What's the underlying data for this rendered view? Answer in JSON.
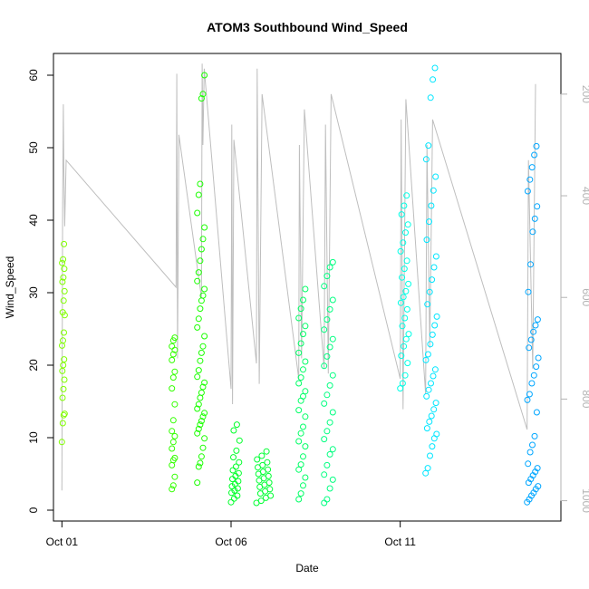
{
  "chart_data": {
    "type": "scatter",
    "title": "ATOM3 Southbound Wind_Speed",
    "xlabel": "Date",
    "ylabel": "Wind_Speed",
    "xlim": [
      "2009-09-30T18:00",
      "2009-10-15T18:00"
    ],
    "x_ticks": [
      {
        "date": "2009-10-01",
        "label": "Oct 01"
      },
      {
        "date": "2009-10-06",
        "label": "Oct 06"
      },
      {
        "date": "2009-10-11",
        "label": "Oct 11"
      }
    ],
    "ylim": [
      -1.5,
      63
    ],
    "y_ticks": [
      0,
      10,
      20,
      30,
      40,
      50,
      60
    ],
    "y2": {
      "description": "pressure profile trace (gray), reversed axis",
      "ylim": [
        1040,
        120
      ],
      "ticks": [
        200,
        400,
        600,
        800,
        1000
      ],
      "color": "#bebebe"
    },
    "grid": false,
    "legend": "none",
    "series": [
      {
        "start": "2009-10-01T00:00",
        "end": "2009-10-01T02:00",
        "color": "#80ff00",
        "values": [
          9.4,
          12.0,
          13.1,
          13.3,
          15.5,
          16.7,
          18.0,
          19.2,
          20.0,
          20.8,
          22.7,
          23.4,
          24.5,
          26.9,
          27.3,
          28.9,
          30.2,
          31.5,
          32.1,
          33.3,
          34.1,
          34.6,
          36.7
        ]
      },
      {
        "start": "2009-10-04T06:00",
        "end": "2009-10-04T09:00",
        "color": "#33ff00",
        "values": [
          2.9,
          3.4,
          4.6,
          6.2,
          6.9,
          7.2,
          8.5,
          9.4,
          10.2,
          10.9,
          12.4,
          14.6,
          16.8,
          18.3,
          19.1,
          20.7,
          21.5,
          22.1,
          22.6,
          23.4,
          23.8
        ]
      },
      {
        "start": "2009-10-05T00:00",
        "end": "2009-10-05T06:00",
        "color": "#1aff00",
        "values": [
          3.8,
          6.0,
          6.5,
          7.4,
          8.6,
          9.9,
          10.6,
          11.2,
          11.8,
          12.3,
          12.9,
          13.4,
          14.0,
          14.6,
          15.5,
          16.2,
          17.0,
          17.6,
          18.4,
          19.3,
          20.6,
          21.7,
          22.6,
          24.0,
          25.2,
          26.4,
          27.8,
          28.9,
          29.6,
          30.5,
          31.6,
          32.8,
          34.4,
          36.0,
          37.4,
          39.0,
          41.0,
          43.5,
          45.0,
          56.8,
          57.4,
          60.0
        ]
      },
      {
        "start": "2009-10-06T00:00",
        "end": "2009-10-06T06:00",
        "color": "#00ff2a",
        "values": [
          1.1,
          1.6,
          2.0,
          2.4,
          2.7,
          3.0,
          3.3,
          3.6,
          4.0,
          4.3,
          4.7,
          5.1,
          5.5,
          6.0,
          6.6,
          7.3,
          8.2,
          9.6,
          11.0,
          11.8
        ]
      },
      {
        "start": "2009-10-06T18:00",
        "end": "2009-10-07T04:00",
        "color": "#00ff33",
        "values": [
          1.0,
          1.3,
          1.7,
          2.0,
          2.3,
          2.6,
          2.9,
          3.2,
          3.5,
          3.8,
          4.1,
          4.4,
          4.7,
          5.0,
          5.3,
          5.6,
          5.9,
          6.2,
          6.6,
          7.0,
          7.5,
          8.1
        ]
      },
      {
        "start": "2009-10-08T00:00",
        "end": "2009-10-08T06:00",
        "color": "#00ff66",
        "values": [
          1.5,
          2.3,
          3.4,
          4.5,
          5.6,
          6.3,
          7.4,
          8.8,
          9.5,
          10.6,
          11.5,
          12.9,
          13.8,
          15.1,
          15.7,
          16.4,
          17.5,
          18.3,
          19.4,
          20.5,
          21.7,
          23.0,
          24.3,
          25.4,
          26.5,
          27.8,
          29.0,
          30.5
        ]
      },
      {
        "start": "2009-10-08T18:00",
        "end": "2009-10-09T02:00",
        "color": "#00ff80",
        "values": [
          1.0,
          1.5,
          3.0,
          4.2,
          4.9,
          6.2,
          7.7,
          8.4,
          9.8,
          10.9,
          12.1,
          13.5,
          14.7,
          15.9,
          17.2,
          18.6,
          19.9,
          21.2,
          22.5,
          23.6,
          24.9,
          26.3,
          27.7,
          29.0,
          30.9,
          32.3,
          33.5,
          34.2
        ]
      },
      {
        "start": "2009-10-11T00:00",
        "end": "2009-10-11T06:00",
        "color": "#00ffe6",
        "values": [
          16.8,
          17.5,
          18.6,
          20.3,
          21.3,
          22.6,
          23.6,
          24.3,
          25.4,
          26.5,
          27.7,
          28.6,
          29.4,
          30.2,
          31.2,
          32.1,
          33.3,
          34.4,
          35.7,
          36.9,
          38.3,
          39.4,
          40.8,
          42.0,
          43.4
        ]
      },
      {
        "start": "2009-10-11T18:00",
        "end": "2009-10-12T02:00",
        "color": "#00e6ff",
        "values": [
          5.1,
          5.8,
          7.5,
          8.8,
          9.9,
          10.5,
          11.3,
          12.2,
          13.0,
          13.9,
          14.8,
          15.7,
          16.6,
          17.5,
          18.5,
          19.4,
          20.7,
          21.5,
          22.9,
          24.2,
          25.5,
          26.7,
          28.4,
          30.1,
          31.8,
          33.5,
          35.0,
          37.3,
          39.8,
          42.0,
          44.1,
          46.0,
          48.4,
          50.3,
          56.9,
          59.4,
          61.0
        ]
      },
      {
        "start": "2009-10-14T18:00",
        "end": "2009-10-15T02:00",
        "color": "#00a6ff",
        "values": [
          1.1,
          1.5,
          2.0,
          2.4,
          2.9,
          3.3,
          3.8,
          4.3,
          4.8,
          5.3,
          5.8,
          6.4,
          8.0,
          9.0,
          10.2,
          13.5,
          15.2,
          16.0,
          17.5,
          18.6,
          19.8,
          21.0,
          22.4,
          23.5,
          24.6,
          25.5,
          26.3,
          30.1,
          33.9,
          38.4,
          40.2,
          41.9,
          44.0,
          45.6,
          47.3,
          49.0,
          50.2
        ]
      }
    ],
    "overlay_line": {
      "color": "#bebebe",
      "points": [
        [
          "2009-10-01T00:00",
          980
        ],
        [
          "2009-10-01T00:30",
          420
        ],
        [
          "2009-10-01T01:00",
          220
        ],
        [
          "2009-10-01T01:20",
          340
        ],
        [
          "2009-10-01T02:00",
          460
        ],
        [
          "2009-10-01T03:00",
          330
        ],
        [
          "2009-10-04T09:00",
          580
        ],
        [
          "2009-10-04T09:30",
          160
        ],
        [
          "2009-10-04T10:00",
          720
        ],
        [
          "2009-10-04T11:00",
          280
        ],
        [
          "2009-10-05T03:00",
          600
        ],
        [
          "2009-10-05T03:30",
          140
        ],
        [
          "2009-10-05T04:00",
          300
        ],
        [
          "2009-10-05T05:00",
          150
        ],
        [
          "2009-10-06T00:00",
          780
        ],
        [
          "2009-10-06T00:30",
          260
        ],
        [
          "2009-10-06T01:00",
          810
        ],
        [
          "2009-10-06T02:00",
          290
        ],
        [
          "2009-10-06T18:00",
          730
        ],
        [
          "2009-10-06T18:30",
          150
        ],
        [
          "2009-10-06T20:00",
          770
        ],
        [
          "2009-10-06T22:00",
          200
        ],
        [
          "2009-10-08T00:00",
          760
        ],
        [
          "2009-10-08T00:30",
          300
        ],
        [
          "2009-10-08T02:00",
          720
        ],
        [
          "2009-10-08T04:00",
          230
        ],
        [
          "2009-10-08T18:00",
          740
        ],
        [
          "2009-10-08T19:00",
          260
        ],
        [
          "2009-10-08T21:00",
          750
        ],
        [
          "2009-10-08T23:00",
          200
        ],
        [
          "2009-10-11T00:00",
          760
        ],
        [
          "2009-10-11T00:40",
          250
        ],
        [
          "2009-10-11T02:00",
          820
        ],
        [
          "2009-10-11T04:00",
          210
        ],
        [
          "2009-10-11T18:00",
          790
        ],
        [
          "2009-10-11T19:00",
          300
        ],
        [
          "2009-10-11T21:00",
          700
        ],
        [
          "2009-10-11T23:00",
          250
        ],
        [
          "2009-10-14T18:00",
          860
        ],
        [
          "2009-10-14T19:00",
          330
        ],
        [
          "2009-10-14T22:00",
          740
        ],
        [
          "2009-10-15T00:00",
          180
        ]
      ]
    }
  }
}
